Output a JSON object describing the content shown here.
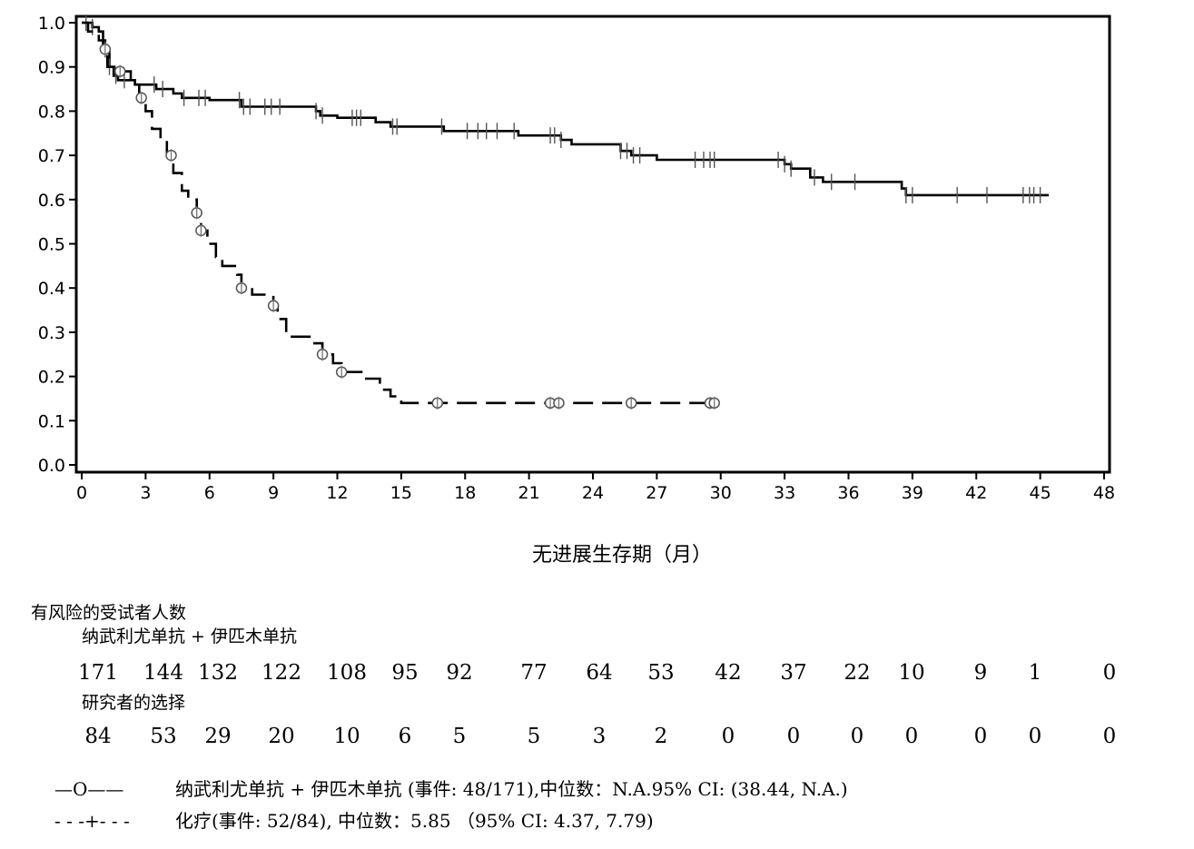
{
  "chart_data": {
    "type": "line",
    "title": "",
    "xlabel": "无进展生存期（月）",
    "ylabel": "",
    "xlim": [
      0,
      48
    ],
    "ylim": [
      0,
      1.0
    ],
    "x_ticks": [
      0,
      3,
      6,
      9,
      12,
      15,
      18,
      21,
      24,
      27,
      30,
      33,
      36,
      39,
      42,
      45,
      48
    ],
    "y_ticks": [
      "0.0",
      "0.1",
      "0.2",
      "0.3",
      "0.4",
      "0.5",
      "0.6",
      "0.7",
      "0.8",
      "0.9",
      "1.0"
    ],
    "grid": false,
    "series": [
      {
        "style": "solid",
        "steps": [
          [
            0,
            1.0
          ],
          [
            0.5,
            0.99
          ],
          [
            0.8,
            0.98
          ],
          [
            1.0,
            0.96
          ],
          [
            1.1,
            0.94
          ],
          [
            1.3,
            0.9
          ],
          [
            1.5,
            0.88
          ],
          [
            1.7,
            0.87
          ],
          [
            2.5,
            0.86
          ],
          [
            3.5,
            0.85
          ],
          [
            4.3,
            0.84
          ],
          [
            4.7,
            0.83
          ],
          [
            6.0,
            0.825
          ],
          [
            7.5,
            0.81
          ],
          [
            11.0,
            0.8
          ],
          [
            11.2,
            0.79
          ],
          [
            12.0,
            0.785
          ],
          [
            13.8,
            0.775
          ],
          [
            14.5,
            0.765
          ],
          [
            17.0,
            0.755
          ],
          [
            19.5,
            0.755
          ],
          [
            20.5,
            0.745
          ],
          [
            22.5,
            0.735
          ],
          [
            23.0,
            0.725
          ],
          [
            25.3,
            0.71
          ],
          [
            25.8,
            0.7
          ],
          [
            27.0,
            0.69
          ],
          [
            33.0,
            0.68
          ],
          [
            33.3,
            0.67
          ],
          [
            34.2,
            0.65
          ],
          [
            34.8,
            0.64
          ],
          [
            38.5,
            0.625
          ],
          [
            38.7,
            0.61
          ],
          [
            45.4,
            0.61
          ]
        ],
        "censored": [
          0.2,
          0.5,
          1.1,
          1.3,
          1.6,
          2.0,
          3.4,
          3.8,
          4.8,
          5.5,
          5.8,
          7.4,
          7.6,
          7.9,
          8.6,
          8.9,
          9.3,
          11.0,
          11.3,
          12.7,
          12.9,
          13.1,
          14.6,
          14.8,
          16.9,
          18.1,
          18.6,
          19.0,
          19.5,
          20.3,
          22.0,
          22.2,
          22.5,
          25.3,
          25.6,
          25.9,
          26.2,
          28.8,
          29.2,
          29.5,
          29.7,
          32.7,
          33.0,
          33.3,
          34.4,
          35.2,
          36.3,
          38.7,
          39.0,
          41.1,
          42.5,
          44.2,
          44.5,
          44.7,
          45.0
        ]
      },
      {
        "style": "dashed",
        "steps": [
          [
            0,
            1.0
          ],
          [
            0.3,
            0.98
          ],
          [
            0.8,
            0.96
          ],
          [
            1.0,
            0.94
          ],
          [
            1.2,
            0.9
          ],
          [
            1.8,
            0.89
          ],
          [
            2.3,
            0.86
          ],
          [
            2.7,
            0.83
          ],
          [
            3.0,
            0.8
          ],
          [
            3.3,
            0.76
          ],
          [
            3.7,
            0.73
          ],
          [
            4.0,
            0.7
          ],
          [
            4.3,
            0.66
          ],
          [
            4.7,
            0.62
          ],
          [
            5.0,
            0.6
          ],
          [
            5.4,
            0.57
          ],
          [
            5.6,
            0.53
          ],
          [
            5.9,
            0.5
          ],
          [
            6.3,
            0.47
          ],
          [
            6.6,
            0.45
          ],
          [
            7.3,
            0.43
          ],
          [
            7.5,
            0.4
          ],
          [
            8.0,
            0.385
          ],
          [
            9.0,
            0.36
          ],
          [
            9.2,
            0.33
          ],
          [
            9.6,
            0.29
          ],
          [
            10.8,
            0.275
          ],
          [
            11.3,
            0.25
          ],
          [
            11.8,
            0.23
          ],
          [
            12.2,
            0.21
          ],
          [
            13.2,
            0.195
          ],
          [
            14.0,
            0.17
          ],
          [
            14.5,
            0.155
          ],
          [
            15.0,
            0.14
          ],
          [
            29.8,
            0.14
          ]
        ],
        "censored": [
          1.1,
          1.8,
          2.8,
          4.2,
          5.4,
          5.6,
          7.5,
          9.0,
          11.3,
          12.2,
          16.7,
          22.0,
          22.4,
          25.8,
          29.5,
          29.7
        ]
      }
    ],
    "risk_table": {
      "header": "有风险的受试者人数",
      "groups": [
        {
          "label": "纳武利尤单抗 + 伊匹木单抗",
          "counts": [
            "171",
            "144",
            "132",
            "122",
            "108",
            "95",
            "92",
            "77",
            "64",
            "53",
            "42",
            "37",
            "22",
            "10",
            "9",
            "1",
            "0"
          ]
        },
        {
          "label": "研究者的选择",
          "counts": [
            "84",
            "53",
            "29",
            "20",
            "10",
            "6",
            "5",
            "5",
            "3",
            "2",
            "0",
            "0",
            "0",
            "0",
            "0",
            "0",
            "0"
          ]
        }
      ]
    },
    "legend": [
      {
        "symbol": "—O——",
        "text": "纳武利尤单抗 + 伊匹木单抗 (事件: 48/171),中位数：N.A.95% CI: (38.44, N.A.)"
      },
      {
        "symbol": "- - -+- - -",
        "text": "化疗(事件: 52/84), 中位数：5.85 （95% CI: 4.37, 7.79)"
      }
    ]
  }
}
